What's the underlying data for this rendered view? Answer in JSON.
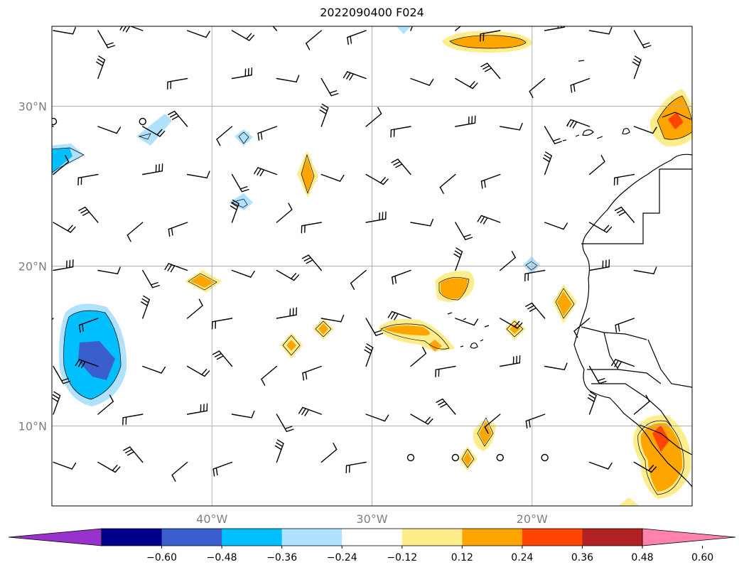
{
  "title": "2022090400 F024",
  "map": {
    "lon_range": [
      -50,
      -10
    ],
    "lat_range": [
      5,
      35
    ],
    "lat_ticks": [
      {
        "value": 30,
        "label": "30°N"
      },
      {
        "value": 20,
        "label": "20°N"
      },
      {
        "value": 10,
        "label": "10°N"
      }
    ],
    "lon_ticks": [
      {
        "value": -40,
        "label": "40°W"
      },
      {
        "value": -30,
        "label": "30°W"
      },
      {
        "value": -20,
        "label": "20°W"
      }
    ],
    "grid": true
  },
  "colorbar": {
    "colors": [
      "#9932cc",
      "#00008b",
      "#3a5fcd",
      "#00bfff",
      "#b0e2ff",
      "#ffffff",
      "#ffec8b",
      "#ffa500",
      "#ff4500",
      "#b22222",
      "#ff82ab"
    ],
    "ticks": [
      "−0.60",
      "−0.48",
      "−0.36",
      "−0.24",
      "−0.12",
      "0.12",
      "0.24",
      "0.36",
      "0.48",
      "0.60"
    ],
    "extend": "both"
  }
}
